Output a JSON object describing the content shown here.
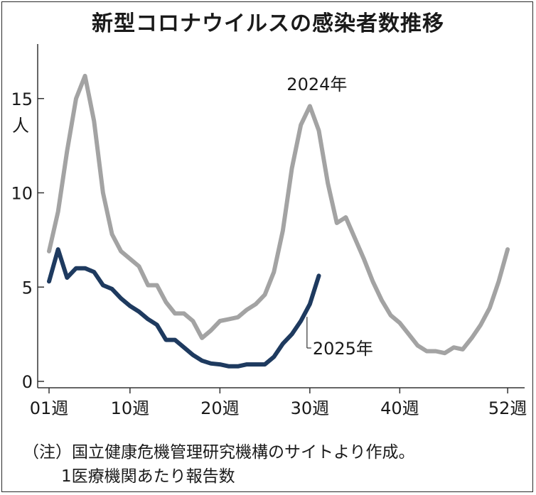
{
  "chart_data": {
    "type": "line",
    "title": "新型コロナウイルスの感染者数推移",
    "ylabel": "人",
    "ylim": [
      0,
      17.5
    ],
    "xlim": [
      1,
      52
    ],
    "x_ticks": [
      1,
      10,
      20,
      30,
      40,
      52
    ],
    "x_tick_labels": [
      "01週",
      "10週",
      "20週",
      "30週",
      "40週",
      "52週"
    ],
    "y_ticks": [
      0,
      5,
      10,
      15
    ],
    "y_tick_labels": [
      "0",
      "5",
      "10",
      "15"
    ],
    "grid": false,
    "series": [
      {
        "name": "2024年",
        "color": "#a3a3a3",
        "x": [
          1,
          2,
          3,
          4,
          5,
          6,
          7,
          8,
          9,
          10,
          11,
          12,
          13,
          14,
          15,
          16,
          17,
          18,
          19,
          20,
          21,
          22,
          23,
          24,
          25,
          26,
          27,
          28,
          29,
          30,
          31,
          32,
          33,
          34,
          35,
          36,
          37,
          38,
          39,
          40,
          41,
          42,
          43,
          44,
          45,
          46,
          47,
          48,
          49,
          50,
          51,
          52
        ],
        "values": [
          6.9,
          9.0,
          12.2,
          15.0,
          16.2,
          13.8,
          10.0,
          7.8,
          6.9,
          6.5,
          6.1,
          5.1,
          5.1,
          4.2,
          3.6,
          3.6,
          3.2,
          2.3,
          2.7,
          3.2,
          3.3,
          3.4,
          3.8,
          4.1,
          4.6,
          5.8,
          8.0,
          11.3,
          13.6,
          14.6,
          13.3,
          10.5,
          8.4,
          8.7,
          7.6,
          6.5,
          5.3,
          4.3,
          3.5,
          3.1,
          2.5,
          1.9,
          1.6,
          1.6,
          1.5,
          1.8,
          1.7,
          2.3,
          3.0,
          3.9,
          5.3,
          7.0
        ]
      },
      {
        "name": "2025年",
        "color": "#1e3a5f",
        "x": [
          1,
          2,
          3,
          4,
          5,
          6,
          7,
          8,
          9,
          10,
          11,
          12,
          13,
          14,
          15,
          16,
          17,
          18,
          19,
          20,
          21,
          22,
          23,
          24,
          25,
          26,
          27,
          28,
          29,
          30,
          31
        ],
        "values": [
          5.3,
          7.0,
          5.5,
          6.0,
          6.0,
          5.8,
          5.1,
          4.9,
          4.4,
          4.0,
          3.7,
          3.3,
          3.0,
          2.2,
          2.2,
          1.8,
          1.4,
          1.1,
          0.95,
          0.9,
          0.8,
          0.8,
          0.9,
          0.9,
          0.9,
          1.3,
          2.0,
          2.5,
          3.2,
          4.1,
          5.6
        ]
      }
    ],
    "annotations": [
      {
        "text": "2024年",
        "series": "2024年"
      },
      {
        "text": "2025年",
        "series": "2025年"
      }
    ]
  },
  "notes": [
    "（注）国立健康危機管理研究機構のサイトより作成。",
    "1医療機関あたり報告数"
  ]
}
